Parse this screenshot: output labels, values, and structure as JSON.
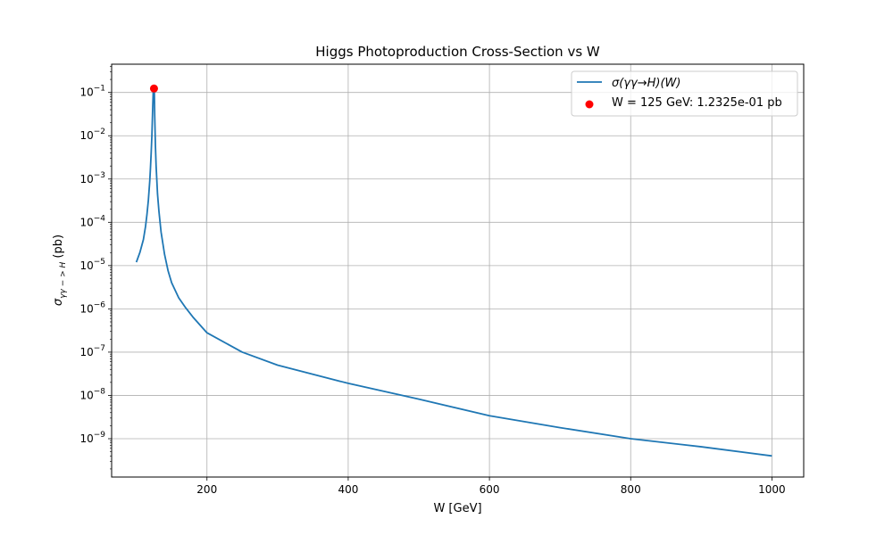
{
  "chart_data": {
    "type": "line",
    "title": "Higgs Photoproduction Cross-Section vs W",
    "xlabel": "W [GeV]",
    "ylabel": {
      "sigma": "σ",
      "subscript": "γγ − > H",
      "unit": " (pb)"
    },
    "xlim": [
      65,
      1045
    ],
    "ylim": [
      1.3e-10,
      0.45
    ],
    "yscale": "log",
    "grid": true,
    "legend_position": "top-right",
    "x_ticks": [
      {
        "value": 200,
        "label": "200"
      },
      {
        "value": 400,
        "label": "400"
      },
      {
        "value": 600,
        "label": "600"
      },
      {
        "value": 800,
        "label": "800"
      },
      {
        "value": 1000,
        "label": "1000"
      }
    ],
    "y_ticks": [
      {
        "value": 1e-09,
        "mantissa": "10",
        "exp": "−9"
      },
      {
        "value": 1e-08,
        "mantissa": "10",
        "exp": "−8"
      },
      {
        "value": 1e-07,
        "mantissa": "10",
        "exp": "−7"
      },
      {
        "value": 1e-06,
        "mantissa": "10",
        "exp": "−6"
      },
      {
        "value": 1e-05,
        "mantissa": "10",
        "exp": "−5"
      },
      {
        "value": 0.0001,
        "mantissa": "10",
        "exp": "−4"
      },
      {
        "value": 0.001,
        "mantissa": "10",
        "exp": "−3"
      },
      {
        "value": 0.01,
        "mantissa": "10",
        "exp": "−2"
      },
      {
        "value": 0.1,
        "mantissa": "10",
        "exp": "−1"
      }
    ],
    "series": [
      {
        "name": "σ(γγ→H)(W)",
        "color": "#1f77b4",
        "marker": "none",
        "x": [
          100,
          105,
          110,
          113,
          115,
          117,
          119,
          120,
          121,
          122,
          123,
          124,
          124.5,
          125,
          125.5,
          126,
          127,
          128,
          130,
          132,
          135,
          140,
          145,
          150,
          160,
          170,
          180,
          200,
          250,
          300,
          400,
          500,
          600,
          700,
          800,
          900,
          1000
        ],
        "y": [
          1.2e-05,
          2e-05,
          4e-05,
          8e-05,
          0.00015,
          0.00032,
          0.0009,
          0.0018,
          0.004,
          0.01,
          0.035,
          0.12,
          0.123,
          0.123,
          0.1,
          0.03,
          0.006,
          0.002,
          0.00045,
          0.00018,
          6e-05,
          1.8e-05,
          7.5e-06,
          4e-06,
          1.8e-06,
          1.05e-06,
          6.5e-07,
          2.8e-07,
          1e-07,
          5e-08,
          1.9e-08,
          8.2e-09,
          3.4e-09,
          1.8e-09,
          1e-09,
          6.5e-10,
          4e-10
        ]
      },
      {
        "name": "W = 125 GeV: 1.2325e-01 pb",
        "color": "#ff0000",
        "marker": "circle",
        "x": [
          125
        ],
        "y": [
          0.12325
        ]
      }
    ]
  }
}
